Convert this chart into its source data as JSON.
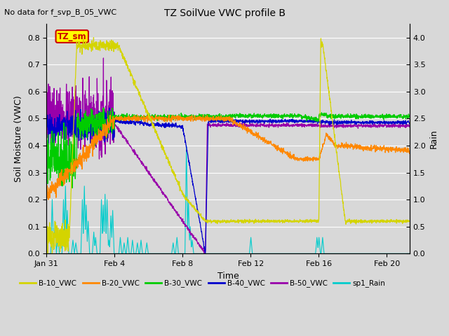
{
  "title": "TZ SoilVue VWC profile B",
  "no_data_text": "No data for f_svp_B_05_VWC",
  "xlabel": "Time",
  "ylabel_left": "Soil Moisture (VWC)",
  "ylabel_right": "Rain",
  "ylim_left": [
    0.0,
    0.85
  ],
  "ylim_right": [
    0.0,
    4.25
  ],
  "yticks_left": [
    0.0,
    0.1,
    0.2,
    0.3,
    0.4,
    0.5,
    0.6,
    0.7,
    0.8
  ],
  "yticks_right": [
    0.0,
    0.5,
    1.0,
    1.5,
    2.0,
    2.5,
    3.0,
    3.5,
    4.0
  ],
  "background_color": "#d8d8d8",
  "plot_bg_color": "#d8d8d8",
  "grid_color": "white",
  "annotation_box": {
    "text": "TZ_sm",
    "facecolor": "yellow",
    "edgecolor": "#cc0000",
    "textcolor": "#cc0000"
  },
  "legend": [
    {
      "label": "B-10_VWC",
      "color": "#d4d400"
    },
    {
      "label": "B-20_VWC",
      "color": "#ff8800"
    },
    {
      "label": "B-30_VWC",
      "color": "#00cc00"
    },
    {
      "label": "B-40_VWC",
      "color": "#0000cc"
    },
    {
      "label": "B-50_VWC",
      "color": "#9900aa"
    },
    {
      "label": "sp1_Rain",
      "color": "#00cccc"
    }
  ],
  "xstart": 24,
  "xend": 408,
  "xtick_positions": [
    24,
    96,
    168,
    240,
    312,
    384
  ],
  "xtick_labels": [
    "Jan 31",
    "Feb 4",
    "Feb 8",
    "Feb 12",
    "Feb 16",
    "Feb 20"
  ]
}
